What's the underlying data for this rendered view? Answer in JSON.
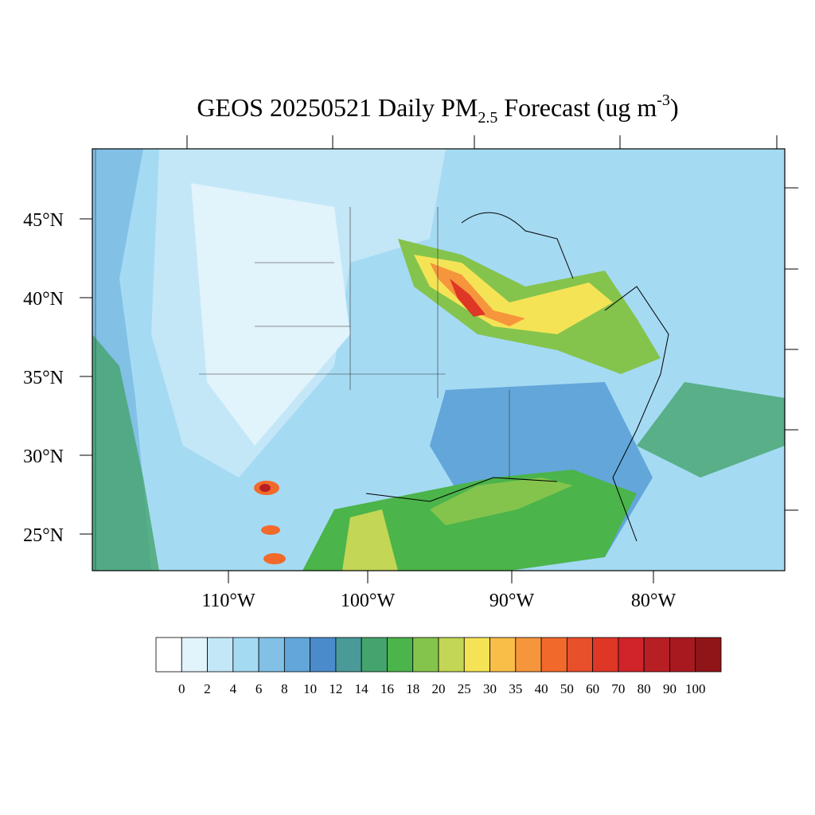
{
  "title": {
    "main": "GEOS 20250521 Daily PM",
    "sub": "2.5",
    "rest": " Forecast (ug m",
    "sup": "-3",
    "end": ")"
  },
  "lat_labels": [
    "45°N",
    "40°N",
    "35°N",
    "30°N",
    "25°N"
  ],
  "lon_labels": [
    "110°W",
    "100°W",
    "90°W",
    "80°W"
  ],
  "colorbar": {
    "colors": [
      "#ffffff",
      "#e1f3fb",
      "#c3e7f7",
      "#a5daf3",
      "#82c0e5",
      "#62a6da",
      "#4a8ccb",
      "#4a9a9a",
      "#45a46d",
      "#4bb44a",
      "#84c44d",
      "#c3d655",
      "#f5e356",
      "#f9be48",
      "#f6963c",
      "#f26a2b",
      "#e84f2b",
      "#de3726",
      "#d0232a",
      "#b81f24",
      "#a8191f",
      "#901518"
    ],
    "labels": [
      0,
      2,
      4,
      6,
      8,
      10,
      12,
      14,
      16,
      18,
      20,
      25,
      30,
      35,
      40,
      50,
      60,
      70,
      80,
      90,
      100
    ]
  }
}
